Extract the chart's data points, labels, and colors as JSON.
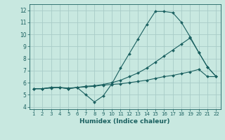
{
  "background_color": "#c8e8e0",
  "grid_color": "#a8ccc8",
  "line_color": "#1a6060",
  "xlabel": "Humidex (Indice chaleur)",
  "xlim": [
    0.5,
    22.5
  ],
  "ylim": [
    3.8,
    12.5
  ],
  "xticks": [
    1,
    2,
    3,
    4,
    5,
    6,
    7,
    8,
    9,
    10,
    11,
    12,
    13,
    14,
    15,
    16,
    17,
    18,
    19,
    20,
    21,
    22
  ],
  "yticks": [
    4,
    5,
    6,
    7,
    8,
    9,
    10,
    11,
    12
  ],
  "line1_x": [
    1,
    2,
    3,
    4,
    5,
    6,
    7,
    8,
    9,
    10,
    11,
    12,
    13,
    14,
    15,
    16,
    17,
    18,
    19,
    20,
    21,
    22
  ],
  "line1_y": [
    5.5,
    5.5,
    5.55,
    5.6,
    5.55,
    5.6,
    5.65,
    5.7,
    5.8,
    5.85,
    5.9,
    6.0,
    6.1,
    6.2,
    6.35,
    6.5,
    6.6,
    6.75,
    6.9,
    7.1,
    6.5,
    6.5
  ],
  "line2_x": [
    1,
    2,
    3,
    4,
    5,
    6,
    7,
    8,
    9,
    10,
    11,
    12,
    13,
    14,
    15,
    16,
    17,
    18,
    19,
    20,
    21,
    22
  ],
  "line2_y": [
    5.5,
    5.5,
    5.6,
    5.6,
    5.5,
    5.6,
    5.0,
    4.4,
    4.9,
    5.9,
    7.2,
    8.4,
    9.6,
    10.8,
    11.9,
    11.9,
    11.8,
    11.0,
    9.8,
    8.5,
    7.3,
    6.5
  ],
  "line3_x": [
    1,
    2,
    3,
    4,
    5,
    6,
    7,
    8,
    9,
    10,
    11,
    12,
    13,
    14,
    15,
    16,
    17,
    18,
    19,
    20,
    21,
    22
  ],
  "line3_y": [
    5.5,
    5.5,
    5.6,
    5.6,
    5.5,
    5.6,
    5.7,
    5.75,
    5.85,
    6.0,
    6.2,
    6.5,
    6.8,
    7.2,
    7.7,
    8.2,
    8.7,
    9.2,
    9.7,
    8.5,
    7.3,
    6.5
  ]
}
